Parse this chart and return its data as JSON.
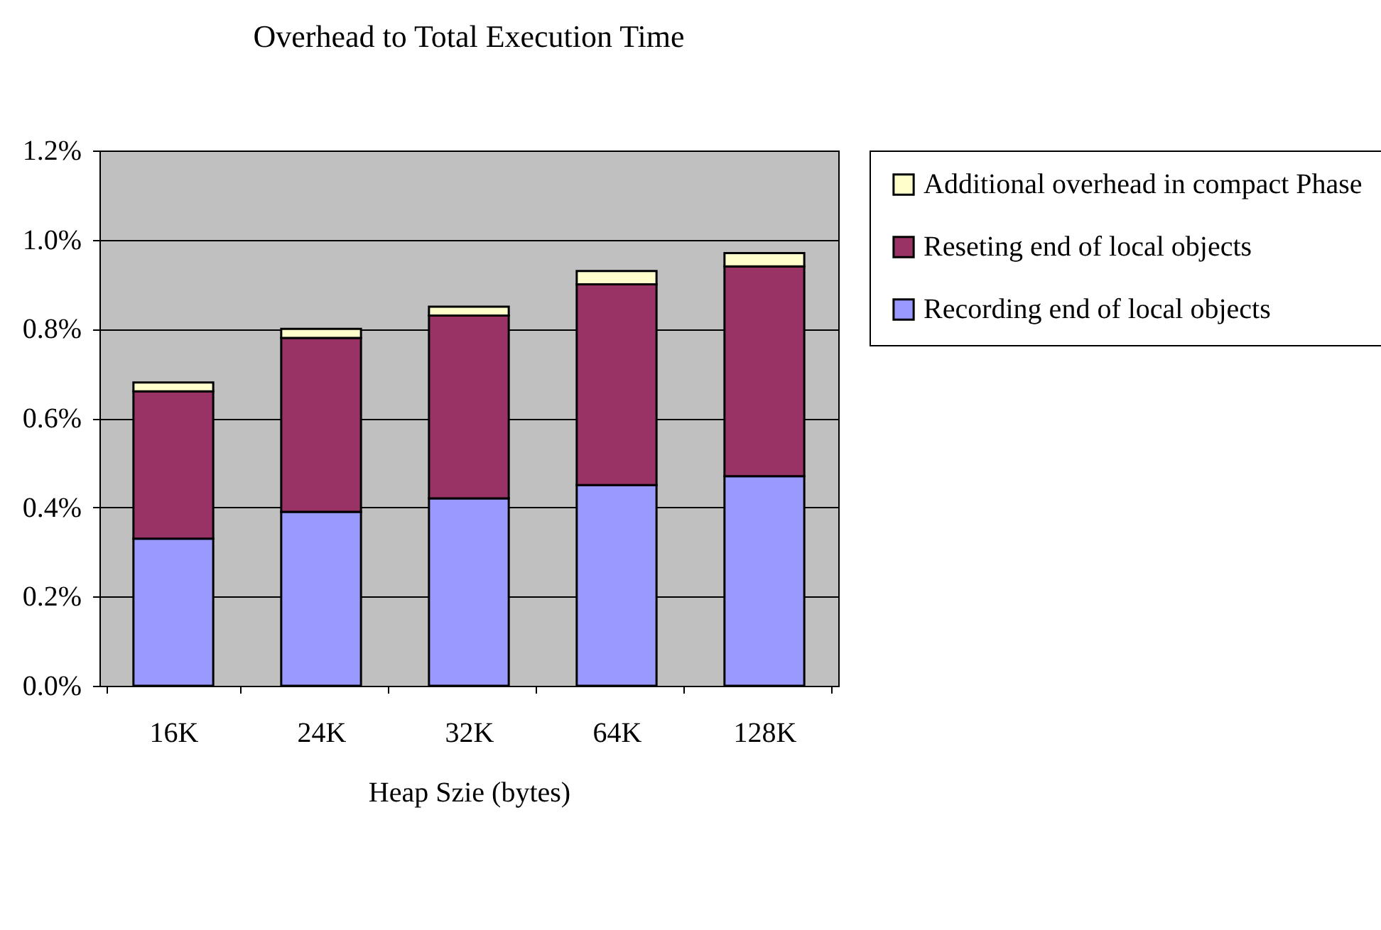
{
  "chart_data": {
    "type": "bar",
    "title": "Overhead to Total Execution Time",
    "xlabel": "Heap Szie (bytes)",
    "categories": [
      "16K",
      "24K",
      "32K",
      "64K",
      "128K"
    ],
    "stacked": true,
    "series": [
      {
        "name": "Recording end of local objects",
        "color": "#9999ff",
        "values": [
          0.33,
          0.39,
          0.42,
          0.45,
          0.47
        ]
      },
      {
        "name": "Reseting end of local objects",
        "color": "#993366",
        "values": [
          0.33,
          0.39,
          0.41,
          0.45,
          0.47
        ]
      },
      {
        "name": "Additional overhead in compact Phase",
        "color": "#ffffcc",
        "values": [
          0.02,
          0.02,
          0.02,
          0.03,
          0.03
        ]
      }
    ],
    "ylim": [
      0,
      1.2
    ],
    "yticks": [
      {
        "value": 0,
        "label": "0.0%"
      },
      {
        "value": 0.2,
        "label": "0.2%"
      },
      {
        "value": 0.4,
        "label": "0.4%"
      },
      {
        "value": 0.6,
        "label": "0.6%"
      },
      {
        "value": 0.8,
        "label": "0.8%"
      },
      {
        "value": 1.0,
        "label": "1.0%"
      },
      {
        "value": 1.2,
        "label": "1.2%"
      }
    ],
    "grid": "y",
    "legend": "right"
  }
}
